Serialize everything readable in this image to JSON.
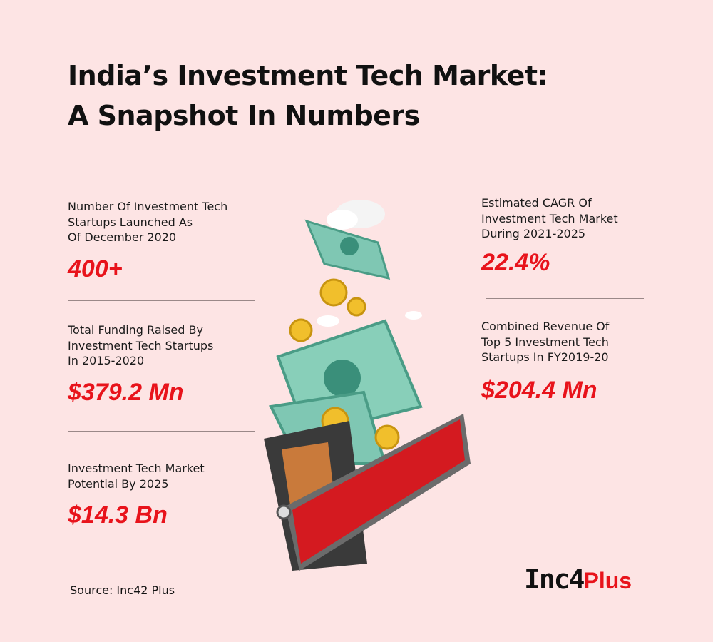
{
  "header": {
    "title_lines": [
      "India’s Investment Tech Market:",
      "A Snapshot In Numbers"
    ]
  },
  "left_stats": [
    {
      "label_lines": [
        "Number Of Investment Tech",
        "Startups Launched As",
        "Of December 2020"
      ],
      "value": "400+"
    },
    {
      "label_lines": [
        "Total Funding Raised By",
        "Investment Tech Startups",
        "In 2015-2020"
      ],
      "value": "$379.2 Mn"
    },
    {
      "label_lines": [
        "Investment Tech Market",
        "Potential By 2025"
      ],
      "value": "$14.3 Bn"
    }
  ],
  "right_stats": [
    {
      "label_lines": [
        "Estimated CAGR  Of",
        "Investment Tech Market",
        "During 2021-2025"
      ],
      "value": "22.4%"
    },
    {
      "label_lines": [
        "Combined Revenue Of",
        "Top 5 Investment Tech",
        "Startups In FY2019-20"
      ],
      "value": "$204.4 Mn"
    }
  ],
  "footer": {
    "source": "Source: Inc42 Plus",
    "logo_brand": "Inc4",
    "logo_suffix": "Plus"
  }
}
